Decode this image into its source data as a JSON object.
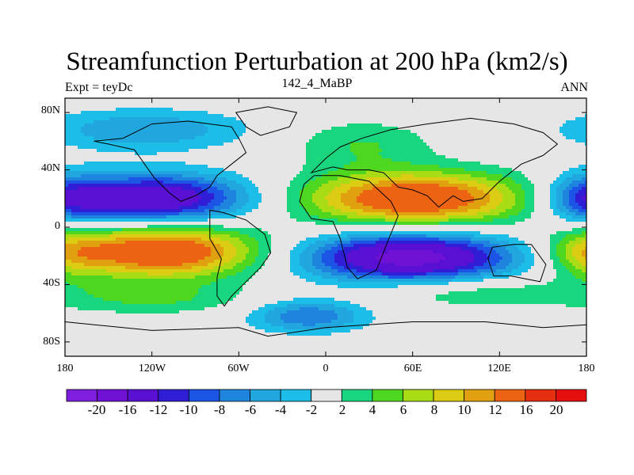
{
  "title": "Streamfunction Perturbation at 200 hPa (km2/s)",
  "subtitle_left": "Expt = teyDc",
  "subtitle_center": "142_4_MaBP",
  "subtitle_right": "ANN",
  "y_ticks": [
    {
      "label": "80N",
      "lat": 80
    },
    {
      "label": "40N",
      "lat": 40
    },
    {
      "label": "0",
      "lat": 0
    },
    {
      "label": "40S",
      "lat": -40
    },
    {
      "label": "80S",
      "lat": -80
    }
  ],
  "x_ticks": [
    {
      "label": "180",
      "lon": -180
    },
    {
      "label": "120W",
      "lon": -120
    },
    {
      "label": "60W",
      "lon": -60
    },
    {
      "label": "0",
      "lon": 0
    },
    {
      "label": "60E",
      "lon": 60
    },
    {
      "label": "120E",
      "lon": 120
    },
    {
      "label": "180",
      "lon": 180
    }
  ],
  "colorbar": {
    "levels": [
      "-20",
      "-16",
      "-12",
      "-10",
      "-8",
      "-6",
      "-4",
      "-2",
      "2",
      "4",
      "6",
      "8",
      "10",
      "12",
      "16",
      "20"
    ],
    "colors": [
      "#7e1fe0",
      "#6f12d6",
      "#5a10d2",
      "#2f1ed6",
      "#1c55e6",
      "#1f84dd",
      "#21a6e0",
      "#1cbde6",
      "#e6e6e6",
      "#19d67e",
      "#4fd61f",
      "#a9dc15",
      "#dccd14",
      "#e0a010",
      "#ec6312",
      "#e62e10",
      "#e60e0e"
    ]
  },
  "chart_data": {
    "type": "heatmap",
    "title": "Streamfunction Perturbation at 200 hPa (km2/s)",
    "variable": "streamfunction perturbation",
    "units": "km2/s",
    "xlim": [
      -180,
      180
    ],
    "ylim": [
      -90,
      90
    ],
    "contour_levels": [
      -20,
      -16,
      -12,
      -10,
      -8,
      -6,
      -4,
      -2,
      2,
      4,
      6,
      8,
      10,
      12,
      16,
      20
    ],
    "features": [
      {
        "name": "north-pacific-low",
        "lon": -118,
        "lat": 20,
        "peak": -16,
        "sx": 46,
        "sy": 12
      },
      {
        "name": "south-pacific-high",
        "lon": -112,
        "lat": -17,
        "peak": 16,
        "sx": 48,
        "sy": 13
      },
      {
        "name": "north-indian-ocean-high",
        "lon": 62,
        "lat": 20,
        "peak": 16,
        "sx": 55,
        "sy": 13
      },
      {
        "name": "south-indian-ocean-low",
        "lon": 58,
        "lat": -21,
        "peak": -18,
        "sx": 52,
        "sy": 12
      },
      {
        "name": "north-atlantic-high",
        "lon": 25,
        "lat": 58,
        "peak": 4,
        "sx": 35,
        "sy": 12
      },
      {
        "name": "north-pacific-polar-low",
        "lon": -125,
        "lat": 68,
        "peak": -6,
        "sx": 50,
        "sy": 10
      },
      {
        "name": "dateline-north-low",
        "lon": 180,
        "lat": 20,
        "peak": -8,
        "sx": 20,
        "sy": 12
      },
      {
        "name": "dateline-south-high",
        "lon": 180,
        "lat": -18,
        "peak": 6,
        "sx": 20,
        "sy": 12
      },
      {
        "name": "south-atlantic-low",
        "lon": -12,
        "lat": -62,
        "peak": -8,
        "sx": 28,
        "sy": 8
      },
      {
        "name": "southern-ocean-high",
        "lon": -120,
        "lat": -50,
        "peak": 4,
        "sx": 50,
        "sy": 8
      },
      {
        "name": "southern-indian-high",
        "lon": 100,
        "lat": -45,
        "peak": 4,
        "sx": 50,
        "sy": 8
      }
    ]
  }
}
